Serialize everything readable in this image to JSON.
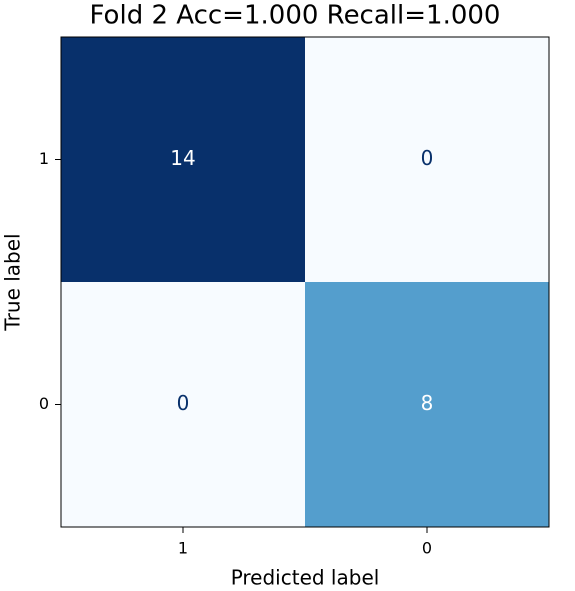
{
  "chart_data": {
    "type": "heatmap",
    "title": "Fold 2  Acc=1.000  Recall=1.000",
    "x_label": "Predicted label",
    "y_label": "True label",
    "x_categories": [
      "1",
      "0"
    ],
    "y_categories": [
      "1",
      "0"
    ],
    "values": [
      [
        14,
        0
      ],
      [
        0,
        8
      ]
    ],
    "colormap": [
      "#f7fbff",
      "#deebf7",
      "#c6dbef",
      "#9ecae1",
      "#6baed6",
      "#4292c6",
      "#2171b5",
      "#08519c",
      "#08306b"
    ],
    "text_colors": [
      "#08306b",
      "#ffffff"
    ]
  }
}
